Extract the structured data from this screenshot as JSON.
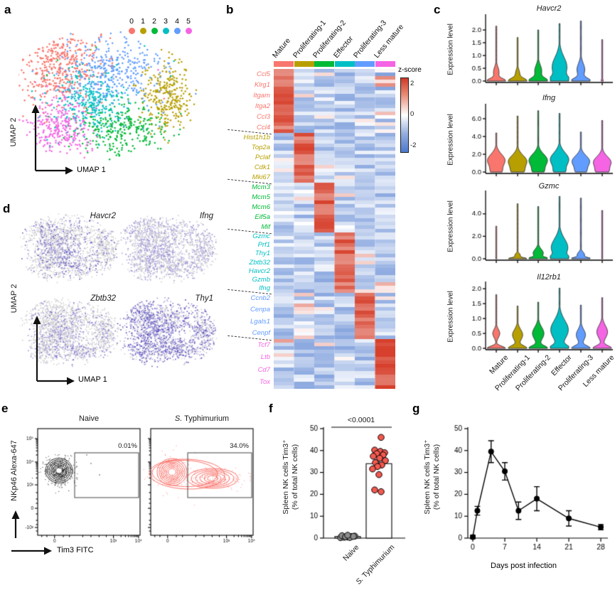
{
  "panels": {
    "a": "a",
    "b": "b",
    "c": "c",
    "d": "d",
    "e": "e",
    "f": "f",
    "g": "g"
  },
  "colors": {
    "cluster": [
      "#F8766D",
      "#B79F00",
      "#00BA38",
      "#00BFC4",
      "#619CFF",
      "#F564E3"
    ],
    "heat_red": "#D6402C",
    "heat_blue": "#4C79CE",
    "feature_gray": "#D3D3D3",
    "feature_purple_dark": "#4A3FB4",
    "feature_purple_light": "#C9C2E8"
  },
  "chart_data": [
    {
      "panel": "a",
      "type": "scatter",
      "xlabel": "UMAP 1",
      "ylabel": "UMAP 2",
      "legend": [
        "0",
        "1",
        "2",
        "3",
        "4",
        "5"
      ],
      "clusters": [
        {
          "id": "0",
          "color": "#F8766D",
          "cx": 0.22,
          "cy": 0.28,
          "sx": 0.13,
          "sy": 0.15,
          "n": 430
        },
        {
          "id": "1",
          "color": "#B79F00",
          "cx": 0.87,
          "cy": 0.5,
          "sx": 0.075,
          "sy": 0.155,
          "n": 310
        },
        {
          "id": "2",
          "color": "#00BA38",
          "cx": 0.6,
          "cy": 0.74,
          "sx": 0.13,
          "sy": 0.095,
          "n": 300
        },
        {
          "id": "3",
          "color": "#00BFC4",
          "cx": 0.4,
          "cy": 0.54,
          "sx": 0.115,
          "sy": 0.125,
          "n": 310
        },
        {
          "id": "4",
          "color": "#619CFF",
          "cx": 0.55,
          "cy": 0.29,
          "sx": 0.16,
          "sy": 0.12,
          "n": 330
        },
        {
          "id": "5",
          "color": "#F564E3",
          "cx": 0.22,
          "cy": 0.73,
          "sx": 0.1,
          "sy": 0.125,
          "n": 290
        }
      ]
    },
    {
      "panel": "b",
      "type": "heatmap",
      "colorbar_title": "z-score",
      "colorbar_ticks": [
        "2",
        "0",
        "-2"
      ],
      "columns": [
        {
          "label": "Mature",
          "color": "#F8766D"
        },
        {
          "label": "Proliferating-1",
          "color": "#B79F00"
        },
        {
          "label": "Proliferating-2",
          "color": "#00BA38"
        },
        {
          "label": "Effector",
          "color": "#00BFC4"
        },
        {
          "label": "Proliferating-3",
          "color": "#619CFF"
        },
        {
          "label": "Less mature",
          "color": "#F564E3"
        }
      ],
      "blocks": [
        {
          "color": "#F8766D",
          "high_col": 0,
          "rows": 18,
          "genes": [
            "Ccl5",
            "Klrg1",
            "Itgam",
            "Itga2",
            "Ccl3",
            "Ccl4"
          ]
        },
        {
          "color": "#B79F00",
          "high_col": 1,
          "rows": 14,
          "genes": [
            "Hist1h1b",
            "Top2a",
            "Pclaf",
            "Cdk1",
            "Mki67"
          ]
        },
        {
          "color": "#00BA38",
          "high_col": 2,
          "rows": 14,
          "genes": [
            "Mcm3",
            "Mcm5",
            "Mcm6",
            "Eif5a",
            "Mif"
          ]
        },
        {
          "color": "#00BFC4",
          "high_col": 3,
          "rows": 17,
          "genes": [
            "Gzmc",
            "Prf1",
            "Thy1",
            "Zbtb32",
            "Havcr2",
            "Gzmb",
            "Ifng"
          ]
        },
        {
          "color": "#619CFF",
          "high_col": 4,
          "rows": 13,
          "genes": [
            "Ccnb2",
            "Cenpa",
            "Lgals1",
            "Cenpf"
          ]
        },
        {
          "color": "#F564E3",
          "high_col": 5,
          "rows": 14,
          "genes": [
            "Tcf7",
            "Ltb",
            "Cd7",
            "Tox"
          ]
        }
      ]
    },
    {
      "panel": "c",
      "type": "violin",
      "ylabel": "Expression level",
      "categories": [
        "Mature",
        "Proliferating-1",
        "Proliferating-2",
        "Effector",
        "Proliferating-3",
        "Less mature"
      ],
      "plots": [
        {
          "title": "Havcr2",
          "ymax": 2.45,
          "yticks": [
            0,
            0.5,
            1,
            1.5,
            2
          ],
          "ytick_labels": [
            "0.0",
            "0.5",
            "1.0",
            "1.5",
            "2.0"
          ],
          "violins": [
            {
              "tail": 2.15,
              "w0": 1,
              "s0": 0.13,
              "bulges": [
                {
                  "y": 0.35,
                  "w": 0.3,
                  "s": 0.28
                }
              ]
            },
            {
              "tail": 1.72,
              "w0": 1,
              "s0": 0.15,
              "bulges": [
                {
                  "y": 0.3,
                  "w": 0.22,
                  "s": 0.22
                }
              ]
            },
            {
              "tail": 2.0,
              "w0": 1,
              "s0": 0.16,
              "bulges": [
                {
                  "y": 0.4,
                  "w": 0.38,
                  "s": 0.32
                }
              ]
            },
            {
              "tail": 2.25,
              "w0": 1,
              "s0": 0.2,
              "bulges": [
                {
                  "y": 0.55,
                  "w": 0.8,
                  "s": 0.55
                }
              ]
            },
            {
              "tail": 2.35,
              "w0": 1,
              "s0": 0.15,
              "bulges": [
                {
                  "y": 0.45,
                  "w": 0.42,
                  "s": 0.35
                }
              ]
            },
            {
              "tail": 1.62,
              "w0": 0.12,
              "s0": 0.1,
              "bulges": []
            }
          ]
        },
        {
          "title": "Ifng",
          "ymax": 7.2,
          "yticks": [
            0,
            2,
            4,
            6
          ],
          "ytick_labels": [
            "0.0",
            "2.0",
            "4.0",
            "6.0"
          ],
          "violins": [
            {
              "tail": 4.4,
              "w0": 0.45,
              "s0": 0.6,
              "bulges": [
                {
                  "y": 1.3,
                  "w": 0.95,
                  "s": 1.0
                }
              ]
            },
            {
              "tail": 6.3,
              "w0": 0.5,
              "s0": 0.6,
              "bulges": [
                {
                  "y": 1.2,
                  "w": 1.0,
                  "s": 0.95
                }
              ]
            },
            {
              "tail": 6.9,
              "w0": 0.45,
              "s0": 0.6,
              "bulges": [
                {
                  "y": 1.3,
                  "w": 1.0,
                  "s": 1.0
                }
              ]
            },
            {
              "tail": 6.6,
              "w0": 0.45,
              "s0": 0.6,
              "bulges": [
                {
                  "y": 1.4,
                  "w": 1.0,
                  "s": 1.1
                }
              ]
            },
            {
              "tail": 4.5,
              "w0": 0.45,
              "s0": 0.6,
              "bulges": [
                {
                  "y": 1.2,
                  "w": 0.95,
                  "s": 0.9
                }
              ]
            },
            {
              "tail": 5.8,
              "w0": 0.5,
              "s0": 0.55,
              "bulges": [
                {
                  "y": 1.1,
                  "w": 0.95,
                  "s": 0.9
                }
              ]
            }
          ]
        },
        {
          "title": "Gzmc",
          "ymax": 5.7,
          "yticks": [
            0,
            2,
            4
          ],
          "ytick_labels": [
            "0.0",
            "2.0",
            "4.0"
          ],
          "violins": [
            {
              "tail": 2.9,
              "w0": 0.07,
              "s0": 0.15,
              "bulges": []
            },
            {
              "tail": 4.9,
              "w0": 1,
              "s0": 0.12,
              "bulges": [
                {
                  "y": 0.3,
                  "w": 0.3,
                  "s": 0.25
                }
              ]
            },
            {
              "tail": 4.65,
              "w0": 1,
              "s0": 0.16,
              "bulges": [
                {
                  "y": 0.5,
                  "w": 0.55,
                  "s": 0.5
                }
              ]
            },
            {
              "tail": 5.55,
              "w0": 1,
              "s0": 0.3,
              "bulges": [
                {
                  "y": 1.0,
                  "w": 0.9,
                  "s": 1.1
                }
              ]
            },
            {
              "tail": 5.4,
              "w0": 1,
              "s0": 0.14,
              "bulges": [
                {
                  "y": 0.35,
                  "w": 0.4,
                  "s": 0.35
                }
              ]
            },
            {
              "tail": 4.3,
              "w0": 0.07,
              "s0": 0.15,
              "bulges": []
            }
          ]
        },
        {
          "title": "Il12rb1",
          "ymax": 2.1,
          "yticks": [
            0,
            0.5,
            1,
            1.5,
            2
          ],
          "ytick_labels": [
            "0.0",
            "0.5",
            "1.0",
            "1.5",
            "2.0"
          ],
          "violins": [
            {
              "tail": 1.8,
              "w0": 1,
              "s0": 0.1,
              "bulges": [
                {
                  "y": 0.5,
                  "w": 0.38,
                  "s": 0.2
                }
              ]
            },
            {
              "tail": 1.42,
              "w0": 1,
              "s0": 0.12,
              "bulges": [
                {
                  "y": 0.45,
                  "w": 0.55,
                  "s": 0.26
                }
              ]
            },
            {
              "tail": 1.55,
              "w0": 1,
              "s0": 0.12,
              "bulges": [
                {
                  "y": 0.5,
                  "w": 0.62,
                  "s": 0.3
                }
              ]
            },
            {
              "tail": 2.02,
              "w0": 1,
              "s0": 0.14,
              "bulges": [
                {
                  "y": 0.62,
                  "w": 0.95,
                  "s": 0.45
                }
              ]
            },
            {
              "tail": 1.45,
              "w0": 1,
              "s0": 0.12,
              "bulges": [
                {
                  "y": 0.45,
                  "w": 0.5,
                  "s": 0.26
                }
              ]
            },
            {
              "tail": 1.7,
              "w0": 1,
              "s0": 0.12,
              "bulges": [
                {
                  "y": 0.55,
                  "w": 0.58,
                  "s": 0.3
                }
              ]
            }
          ]
        }
      ]
    },
    {
      "panel": "d",
      "type": "scatter",
      "xlabel": "UMAP 1",
      "ylabel": "UMAP 2",
      "plots": [
        {
          "gene": "Havcr2",
          "depth": 0.9,
          "weights": [
            0.3,
            0.25,
            0.3,
            0.75,
            0.3,
            0.25
          ]
        },
        {
          "gene": "Ifng",
          "depth": 0.45,
          "weights": [
            0.55,
            0.45,
            0.5,
            0.6,
            0.45,
            0.5
          ]
        },
        {
          "gene": "Zbtb32",
          "depth": 0.7,
          "weights": [
            0.2,
            0.25,
            0.45,
            0.55,
            0.25,
            0.3
          ]
        },
        {
          "gene": "Thy1",
          "depth": 1.0,
          "weights": [
            0.85,
            0.55,
            0.75,
            0.9,
            0.65,
            0.8
          ]
        }
      ]
    },
    {
      "panel": "e",
      "type": "flow-contour",
      "xlabel": "Tim3 FITC",
      "ylabel": "NKp46 Alexa-647",
      "ytick_labels": [
        "10⁵",
        "10⁴",
        "10³",
        "0",
        "-10³"
      ],
      "xtick_labels": [
        "0",
        "10³",
        "10⁴"
      ],
      "plots": [
        {
          "title_italic_prefix": "",
          "title": "Naive",
          "color": "#1a1a1a",
          "percent": "0.01%",
          "tail": false
        },
        {
          "title_italic_prefix": "S.",
          "title": " Typhimurium",
          "color": "#F8655C",
          "percent": "34.0%",
          "tail": true
        }
      ]
    },
    {
      "panel": "f",
      "type": "dot-bar",
      "pvalue": "<0.0001",
      "ylabel_line1": "Spleen NK cells Tim3⁺",
      "ylabel_line2": "(% of total NK cells)",
      "ylim": [
        0,
        50
      ],
      "yticks": [
        0,
        10,
        20,
        30,
        40,
        50
      ],
      "groups": [
        {
          "label_italic_prefix": "",
          "label": "Naive",
          "color": "#8C8C8C",
          "mean": 0.7,
          "sem": 0.4,
          "values": [
            0.2,
            0.4,
            0.5,
            0.7,
            0.9,
            1.1,
            0.6,
            0.3,
            0.8,
            1.3
          ]
        },
        {
          "label_italic_prefix": "S.",
          "label": " Typhimurium",
          "color": "#F4594F",
          "mean": 34,
          "sem": 1.6,
          "values": [
            46,
            40.2,
            39.6,
            39,
            38.6,
            38,
            37.4,
            36.5,
            35.4,
            34.5,
            33.4,
            32.7,
            31.6,
            29,
            22,
            21.2
          ]
        }
      ]
    },
    {
      "panel": "g",
      "type": "line",
      "xlabel": "Days post infection",
      "ylabel_line1": "Spleen NK cells Tim3⁺",
      "ylabel_line2": "(% of total NK cells)",
      "ylim": [
        0,
        50
      ],
      "yticks": [
        0,
        10,
        20,
        30,
        40,
        50
      ],
      "xticks": [
        0,
        7,
        14,
        21,
        28
      ],
      "x": [
        0,
        1,
        4,
        7,
        10,
        14,
        21,
        28
      ],
      "y": [
        0.5,
        12.5,
        39.5,
        30.5,
        12.5,
        18,
        9,
        5
      ],
      "err": [
        0.8,
        2,
        5,
        4,
        4,
        5.5,
        3.5,
        1.2
      ]
    }
  ]
}
